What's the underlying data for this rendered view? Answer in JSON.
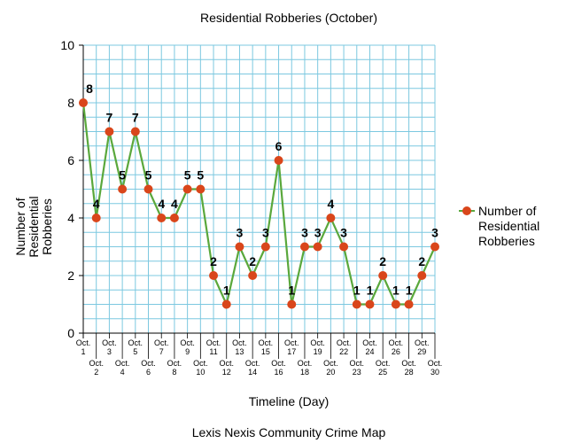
{
  "chart_data": {
    "type": "line",
    "title": "Residential Robberies (October)",
    "xlabel": "Timeline (Day)",
    "ylabel": "Number of Residential Robberies",
    "ylabel_lines": [
      "Number of",
      "Residential",
      "Robberies"
    ],
    "ylim": [
      0,
      10
    ],
    "yticks": [
      0,
      2,
      4,
      6,
      8,
      10
    ],
    "grid": true,
    "legend_position": "right",
    "categories": [
      [
        "Oct.",
        "1"
      ],
      [
        "Oct.",
        "2"
      ],
      [
        "Oct.",
        "3"
      ],
      [
        "Oct.",
        "4"
      ],
      [
        "Oct.",
        "5"
      ],
      [
        "Oct.",
        "6"
      ],
      [
        "Oct.",
        "7"
      ],
      [
        "Oct.",
        "8"
      ],
      [
        "Oct.",
        "9"
      ],
      [
        "Oct.",
        "10"
      ],
      [
        "Oct.",
        "11"
      ],
      [
        "Oct.",
        "12"
      ],
      [
        "Oct.",
        "13"
      ],
      [
        "Oct.",
        "14"
      ],
      [
        "Oct.",
        "15"
      ],
      [
        "Oct.",
        "16"
      ],
      [
        "Oct.",
        "17"
      ],
      [
        "Oct.",
        "18"
      ],
      [
        "Oct.",
        "19"
      ],
      [
        "Oct.",
        "20"
      ],
      [
        "Oct.",
        "22"
      ],
      [
        "Oct.",
        "23"
      ],
      [
        "Oct.",
        "24"
      ],
      [
        "Oct.",
        "25"
      ],
      [
        "Oct.",
        "26"
      ],
      [
        "Oct.",
        "28"
      ],
      [
        "Oct.",
        "29"
      ],
      [
        "Oct.",
        "30"
      ]
    ],
    "series": [
      {
        "name": "Number of Residential Robberies",
        "legend_lines": [
          "Number of",
          "Residential",
          "Robberies"
        ],
        "values": [
          8,
          4,
          7,
          5,
          7,
          5,
          4,
          4,
          5,
          5,
          2,
          1,
          3,
          2,
          3,
          6,
          1,
          3,
          3,
          4,
          3,
          1,
          1,
          2,
          1,
          1,
          2,
          3
        ],
        "line_color": "#5aa83c",
        "marker_color": "#d9461b"
      }
    ],
    "grid_color": "#7cc8e0",
    "source": "Lexis Nexis Community Crime Map"
  }
}
